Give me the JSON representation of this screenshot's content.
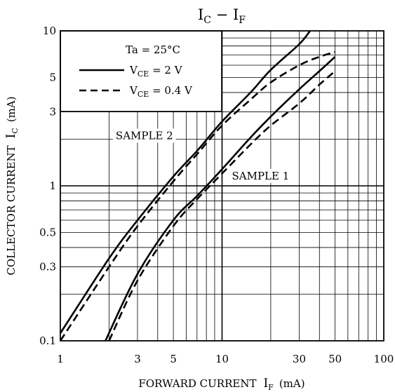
{
  "chart_data": {
    "type": "line",
    "title": {
      "main": "I",
      "sub1": "C",
      "dash": " − ",
      "main2": "I",
      "sub2": "F"
    },
    "xlabel": {
      "prefix": "FORWARD CURRENT",
      "sym": "I",
      "sub": "F",
      "unit": "(mA)"
    },
    "ylabel": {
      "prefix": "COLLECTOR CURRENT",
      "sym": "I",
      "sub": "C",
      "unit": "(mA)"
    },
    "x_scale": "log",
    "y_scale": "log",
    "xlim": [
      1,
      100
    ],
    "ylim": [
      0.1,
      10
    ],
    "grid": true,
    "x_ticks": [
      {
        "v": 1,
        "label": "1"
      },
      {
        "v": 3,
        "label": "3"
      },
      {
        "v": 5,
        "label": "5"
      },
      {
        "v": 10,
        "label": "10"
      },
      {
        "v": 30,
        "label": "30"
      },
      {
        "v": 50,
        "label": "50"
      },
      {
        "v": 100,
        "label": "100"
      }
    ],
    "y_ticks": [
      {
        "v": 0.1,
        "label": "0.1"
      },
      {
        "v": 0.3,
        "label": "0.3"
      },
      {
        "v": 0.5,
        "label": "0.5"
      },
      {
        "v": 1,
        "label": "1"
      },
      {
        "v": 3,
        "label": "3"
      },
      {
        "v": 5,
        "label": "5"
      },
      {
        "v": 10,
        "label": "10"
      }
    ],
    "legend": {
      "placement": "top-left",
      "condition": "Ta = 25°C",
      "entries": [
        {
          "sym": "V",
          "sub": "CE",
          "rest": " = 2 V",
          "style": "solid"
        },
        {
          "sym": "V",
          "sub": "CE",
          "rest": " = 0.4 V",
          "style": "dashed"
        }
      ]
    },
    "annotations": [
      {
        "text": "SAMPLE 2",
        "x": 2.2,
        "y": 2.0
      },
      {
        "text": "SAMPLE 1",
        "x": 11.5,
        "y": 1.1
      }
    ],
    "series": [
      {
        "style": "solid",
        "points": [
          [
            1,
            0.112
          ],
          [
            2,
            0.34
          ],
          [
            3,
            0.6
          ],
          [
            5,
            1.15
          ],
          [
            7,
            1.68
          ],
          [
            10,
            2.6
          ],
          [
            15,
            4.0
          ],
          [
            20,
            5.6
          ],
          [
            30,
            8.2
          ],
          [
            35,
            10
          ]
        ]
      },
      {
        "style": "dashed",
        "points": [
          [
            1,
            0.1
          ],
          [
            2,
            0.3
          ],
          [
            3,
            0.55
          ],
          [
            5,
            1.07
          ],
          [
            7,
            1.6
          ],
          [
            10,
            2.45
          ],
          [
            15,
            3.6
          ],
          [
            20,
            4.65
          ],
          [
            30,
            6.0
          ],
          [
            40,
            6.8
          ],
          [
            50,
            7.3
          ]
        ]
      },
      {
        "style": "solid",
        "points": [
          [
            1.9,
            0.1
          ],
          [
            3,
            0.27
          ],
          [
            5,
            0.6
          ],
          [
            7,
            0.86
          ],
          [
            10,
            1.28
          ],
          [
            15,
            2.05
          ],
          [
            20,
            2.8
          ],
          [
            30,
            4.2
          ],
          [
            40,
            5.5
          ],
          [
            50,
            6.8
          ]
        ]
      },
      {
        "style": "dashed",
        "points": [
          [
            2,
            0.1
          ],
          [
            3,
            0.245
          ],
          [
            5,
            0.55
          ],
          [
            7,
            0.82
          ],
          [
            10,
            1.2
          ],
          [
            15,
            1.85
          ],
          [
            20,
            2.45
          ],
          [
            30,
            3.4
          ],
          [
            40,
            4.5
          ],
          [
            50,
            5.5
          ]
        ]
      }
    ]
  }
}
